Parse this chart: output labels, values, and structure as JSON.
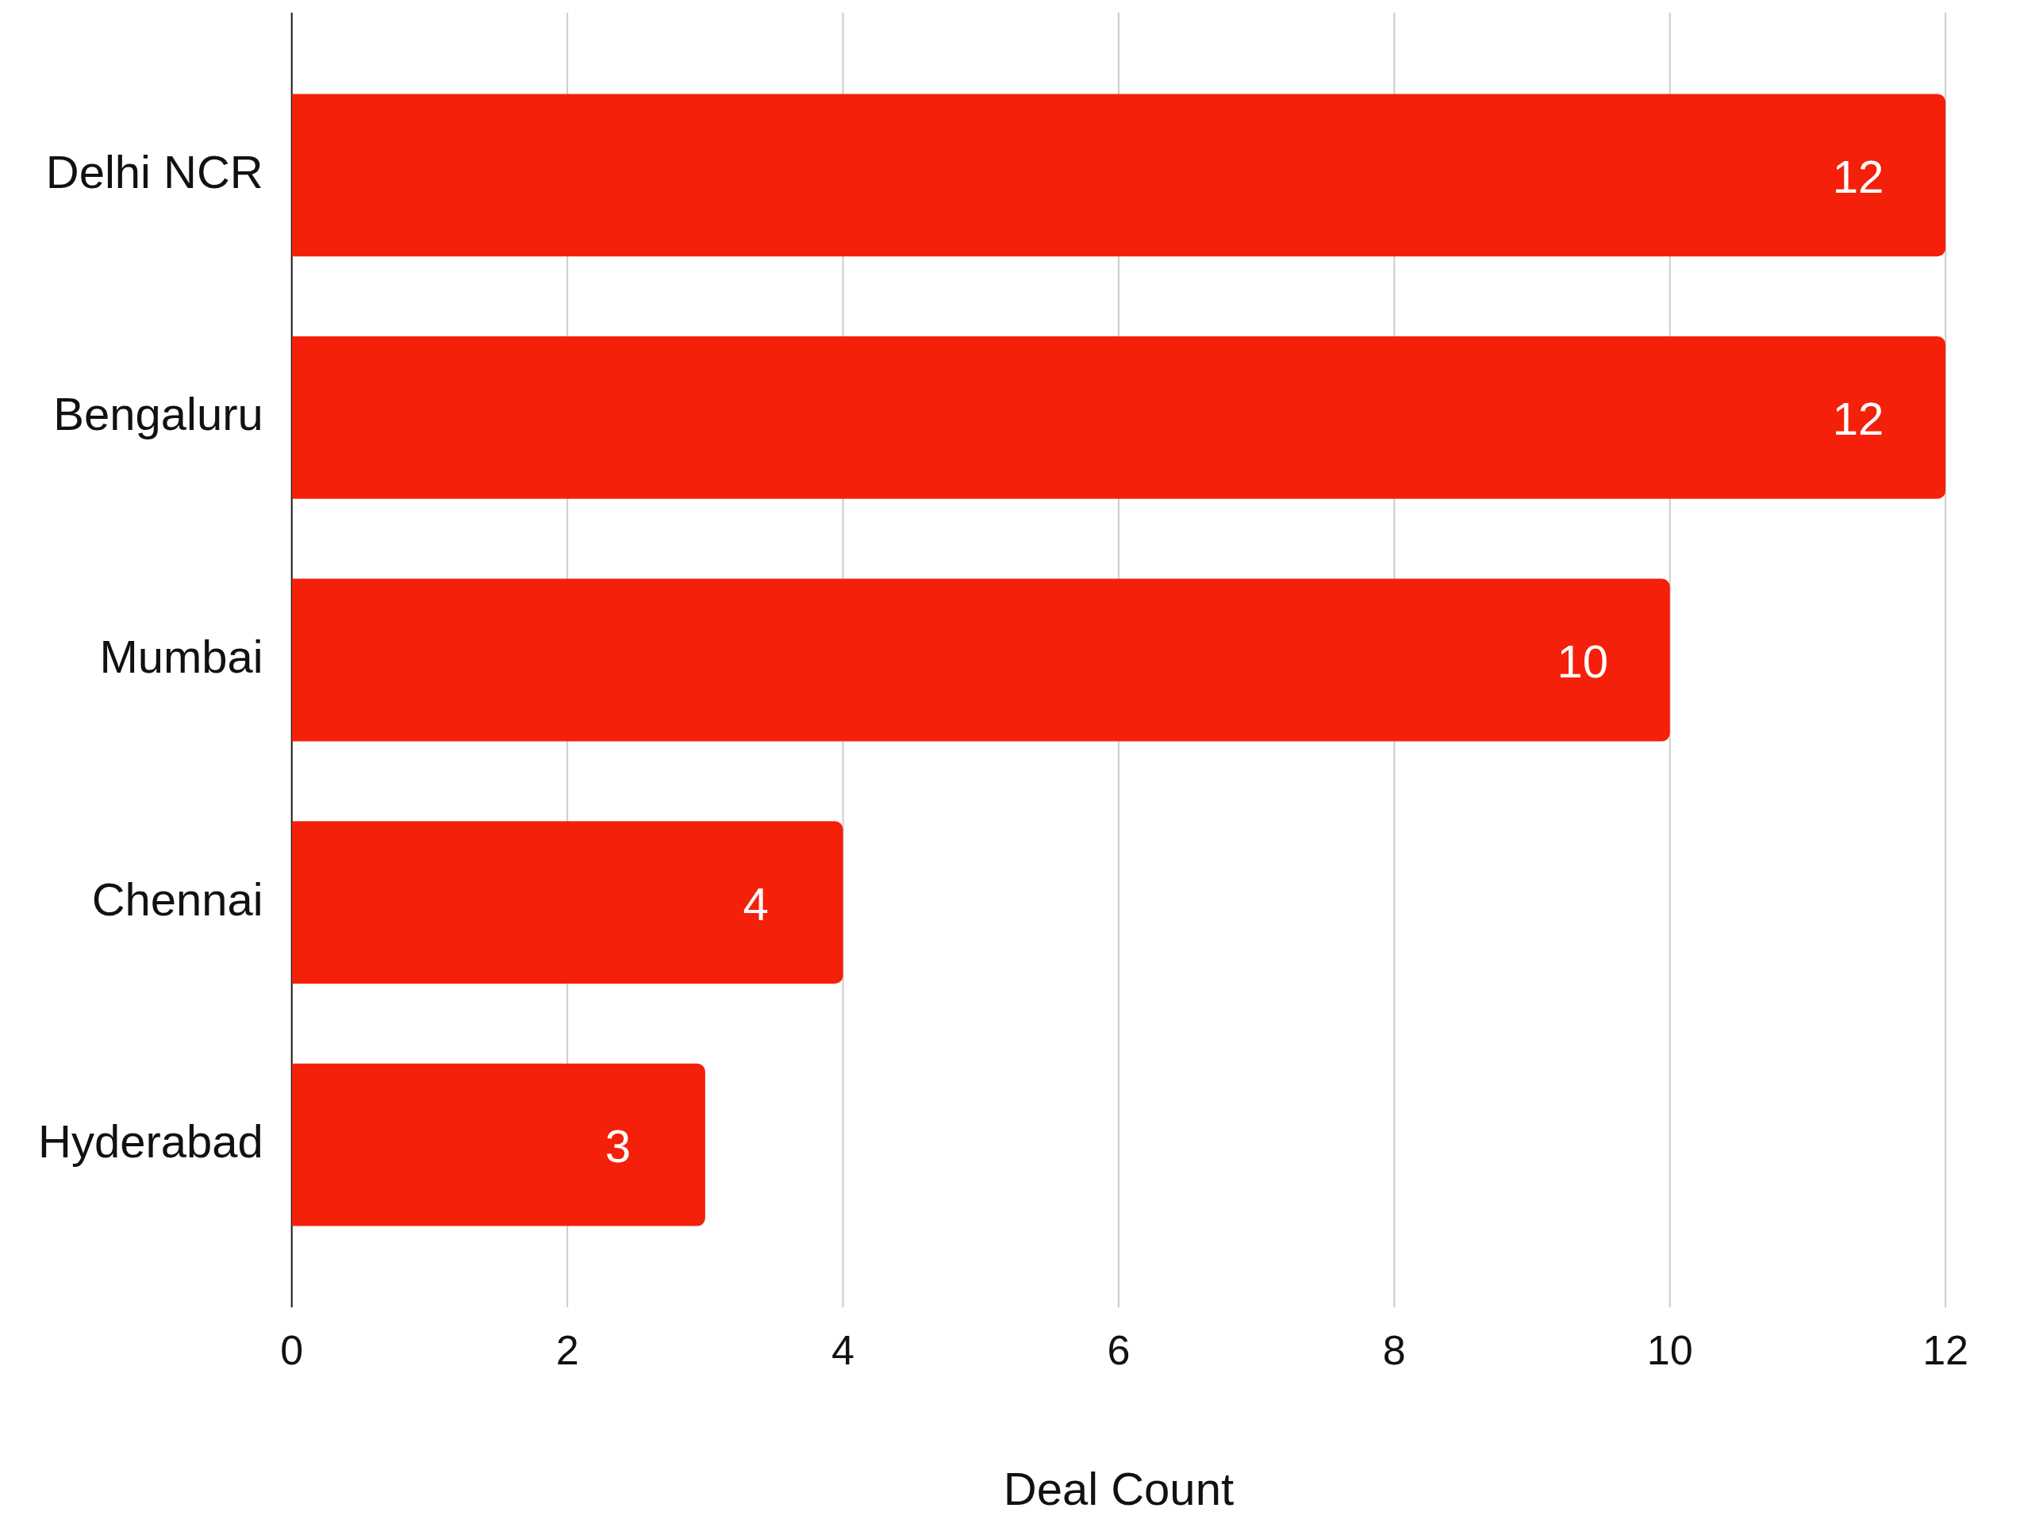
{
  "chart_data": {
    "type": "bar",
    "orientation": "horizontal",
    "categories": [
      "Delhi NCR",
      "Bengaluru",
      "Mumbai",
      "Chennai",
      "Hyderabad"
    ],
    "values": [
      12,
      12,
      10,
      4,
      3
    ],
    "color": "#f5200a",
    "xlabel": "Deal Count",
    "xlim": [
      0,
      12
    ],
    "xticks": [
      0,
      2,
      4,
      6,
      8,
      10,
      12
    ],
    "grid": "x",
    "data_labels": true,
    "legend": false
  }
}
